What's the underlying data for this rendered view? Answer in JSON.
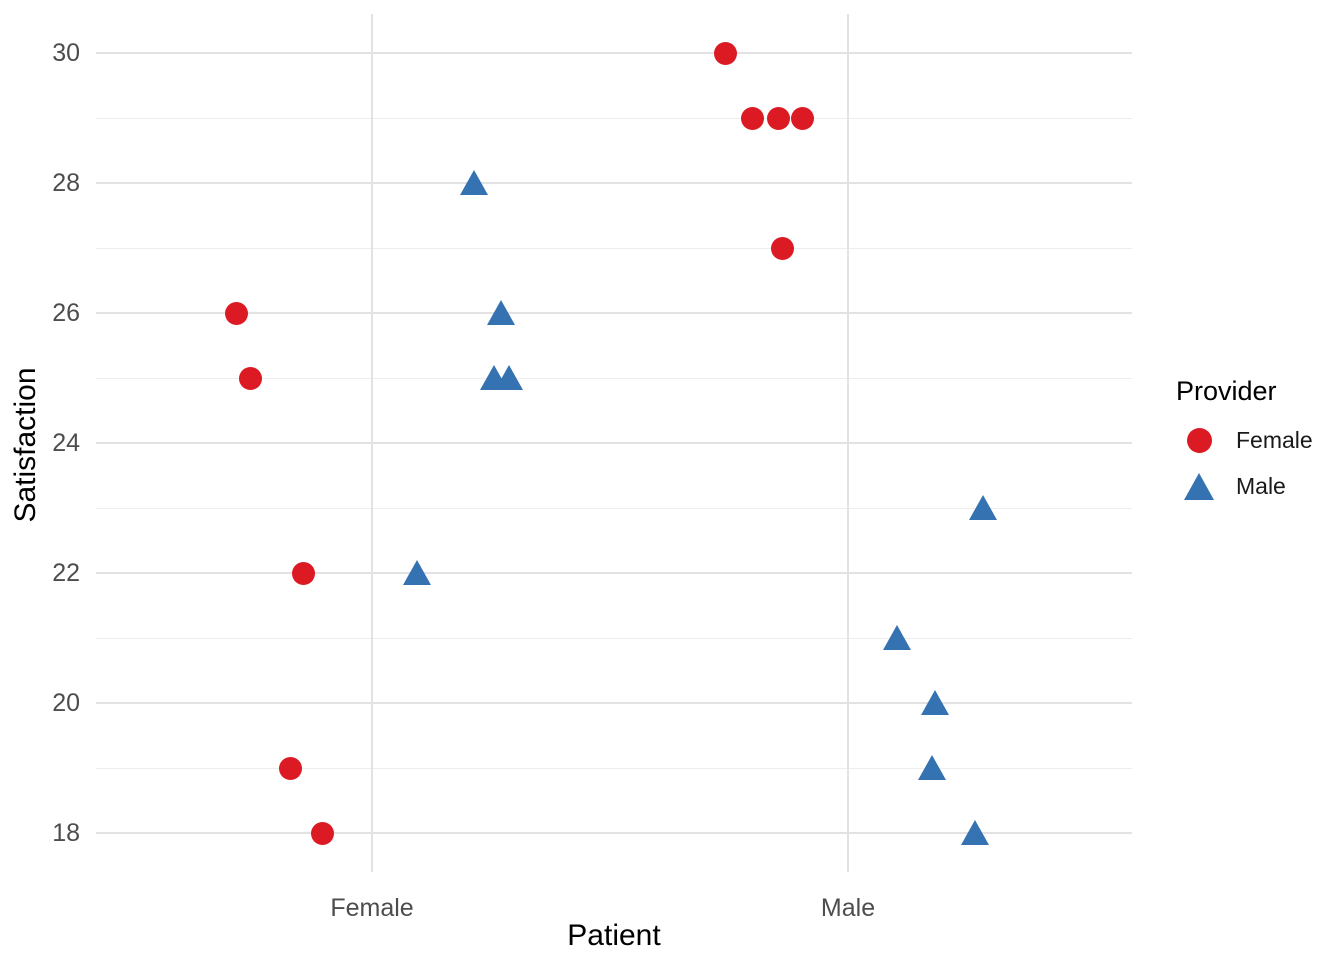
{
  "axes": {
    "x_title": "Patient",
    "y_title": "Satisfaction"
  },
  "legend": {
    "title": "Provider"
  },
  "colors": {
    "provider_female": "#dc1a23",
    "provider_male": "#3572b2",
    "grid_major": "#e2e2e2",
    "grid_minor": "#ededed",
    "tick_text": "#4d4d4d",
    "title_text": "#000000",
    "background": "#ffffff"
  },
  "chart_data": {
    "type": "scatter",
    "title": "",
    "xlabel": "Patient",
    "ylabel": "Satisfaction",
    "categories": [
      "Female",
      "Male"
    ],
    "y_axis": {
      "major_ticks": [
        18,
        20,
        22,
        24,
        26,
        28,
        30
      ],
      "minor_gridlines": [
        19,
        21,
        23,
        25,
        27,
        29
      ],
      "range": [
        17.4,
        30.6
      ]
    },
    "grid": "horizontal major+minor, vertical at category centers, light gray on white",
    "legend": {
      "title": "Provider",
      "position": "right",
      "entries": [
        {
          "label": "Female",
          "shape": "circle",
          "color": "#dc1a23"
        },
        {
          "label": "Male",
          "shape": "triangle",
          "color": "#3572b2"
        }
      ]
    },
    "series": [
      {
        "name": "Female",
        "shape": "circle",
        "color": "#dc1a23",
        "points": [
          {
            "patient": "Female",
            "satisfaction": 26,
            "jitter": -0.284
          },
          {
            "patient": "Female",
            "satisfaction": 25,
            "jitter": -0.256
          },
          {
            "patient": "Female",
            "satisfaction": 22,
            "jitter": -0.143
          },
          {
            "patient": "Female",
            "satisfaction": 19,
            "jitter": -0.172
          },
          {
            "patient": "Female",
            "satisfaction": 18,
            "jitter": -0.103
          },
          {
            "patient": "Male",
            "satisfaction": 30,
            "jitter": -0.258
          },
          {
            "patient": "Male",
            "satisfaction": 29,
            "jitter": -0.2
          },
          {
            "patient": "Male",
            "satisfaction": 29,
            "jitter": -0.147
          },
          {
            "patient": "Male",
            "satisfaction": 29,
            "jitter": -0.095
          },
          {
            "patient": "Male",
            "satisfaction": 27,
            "jitter": -0.137
          }
        ]
      },
      {
        "name": "Male",
        "shape": "triangle",
        "color": "#3572b2",
        "points": [
          {
            "patient": "Female",
            "satisfaction": 28,
            "jitter": 0.214
          },
          {
            "patient": "Female",
            "satisfaction": 26,
            "jitter": 0.271
          },
          {
            "patient": "Female",
            "satisfaction": 25,
            "jitter": 0.256
          },
          {
            "patient": "Female",
            "satisfaction": 25,
            "jitter": 0.288
          },
          {
            "patient": "Female",
            "satisfaction": 22,
            "jitter": 0.095
          },
          {
            "patient": "Male",
            "satisfaction": 23,
            "jitter": 0.284
          },
          {
            "patient": "Male",
            "satisfaction": 21,
            "jitter": 0.103
          },
          {
            "patient": "Male",
            "satisfaction": 20,
            "jitter": 0.183
          },
          {
            "patient": "Male",
            "satisfaction": 19,
            "jitter": 0.176
          },
          {
            "patient": "Male",
            "satisfaction": 18,
            "jitter": 0.267
          }
        ]
      }
    ]
  }
}
